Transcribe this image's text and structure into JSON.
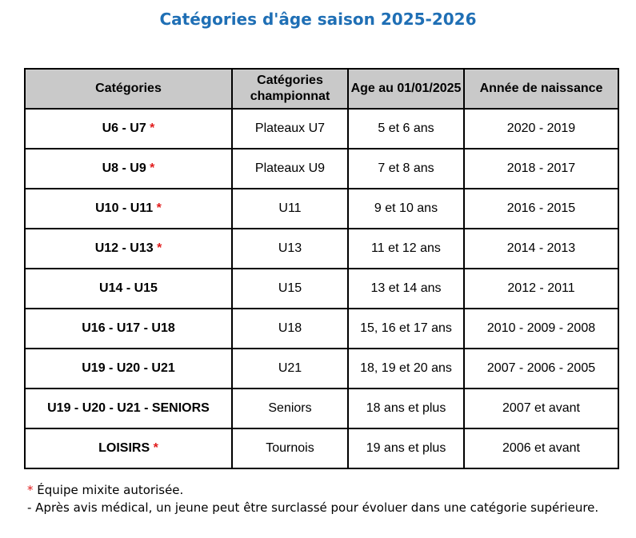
{
  "title": "Catégories d'âge saison 2025-2026",
  "table": {
    "headers": [
      "Catégories",
      "Catégories championnat",
      "Age au 01/01/2025",
      "Année de naissance"
    ],
    "rows": [
      {
        "categorie": "U6 - U7",
        "star": "*",
        "championnat": "Plateaux U7",
        "age": "5 et 6 ans",
        "naissance": "2020 - 2019"
      },
      {
        "categorie": "U8 - U9",
        "star": "*",
        "championnat": "Plateaux U9",
        "age": "7 et 8 ans",
        "naissance": "2018 - 2017"
      },
      {
        "categorie": "U10 - U11",
        "star": "*",
        "championnat": "U11",
        "age": "9 et 10 ans",
        "naissance": "2016 - 2015"
      },
      {
        "categorie": "U12 - U13",
        "star": "*",
        "championnat": "U13",
        "age": "11 et 12 ans",
        "naissance": "2014 - 2013"
      },
      {
        "categorie": "U14 - U15",
        "star": "",
        "championnat": "U15",
        "age": "13 et 14 ans",
        "naissance": "2012 - 2011"
      },
      {
        "categorie": "U16 - U17 - U18",
        "star": "",
        "championnat": "U18",
        "age": "15, 16 et 17 ans",
        "naissance": "2010 - 2009 - 2008"
      },
      {
        "categorie": "U19 - U20 - U21",
        "star": "",
        "championnat": "U21",
        "age": "18, 19 et 20 ans",
        "naissance": "2007 - 2006 - 2005"
      },
      {
        "categorie": "U19 - U20 - U21 - SENIORS",
        "star": "",
        "championnat": "Seniors",
        "age": "18 ans et plus",
        "naissance": "2007 et avant"
      },
      {
        "categorie": "LOISIRS",
        "star": "*",
        "championnat": "Tournois",
        "age": "19 ans et plus",
        "naissance": "2006 et avant"
      }
    ]
  },
  "notes": {
    "star": "*",
    "line1": " Équipe mixite autorisée.",
    "line2": "- Après avis médical, un jeune peut être surclassé pour évoluer dans une catégorie supérieure."
  },
  "colors": {
    "title": "#1f6fb5",
    "star": "#e11b1b",
    "header_bg": "#c9c9c9"
  }
}
